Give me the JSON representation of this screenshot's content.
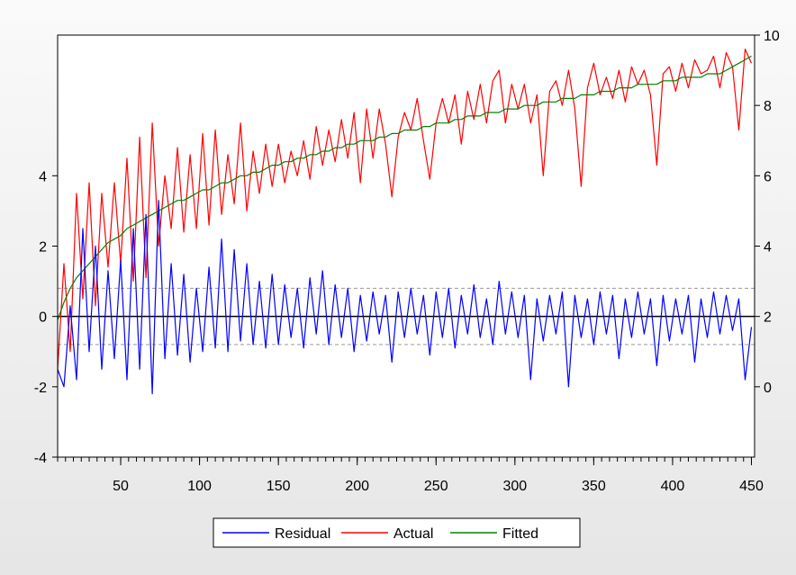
{
  "chart_data": {
    "type": "line",
    "title": "",
    "xlabel": "",
    "x_range": [
      10,
      452
    ],
    "x_ticks": [
      50,
      100,
      150,
      200,
      250,
      300,
      350,
      400,
      450
    ],
    "left_axis": {
      "range": [
        -4,
        8
      ],
      "ticks": [
        -4,
        -2,
        0,
        2,
        4
      ]
    },
    "right_axis": {
      "range": [
        -2,
        10
      ],
      "ticks": [
        0,
        2,
        4,
        6,
        8,
        10
      ]
    },
    "residual_std_band": [
      -0.8,
      0.8
    ],
    "legend_placement": "bottom-center",
    "series": [
      {
        "name": "Residual",
        "axis": "left",
        "color": "#0000ff",
        "x": [
          10,
          14,
          18,
          22,
          26,
          30,
          34,
          38,
          42,
          46,
          50,
          54,
          58,
          62,
          66,
          70,
          74,
          78,
          82,
          86,
          90,
          94,
          98,
          102,
          106,
          110,
          114,
          118,
          122,
          126,
          130,
          134,
          138,
          142,
          146,
          150,
          154,
          158,
          162,
          166,
          170,
          174,
          178,
          182,
          186,
          190,
          194,
          198,
          202,
          206,
          210,
          214,
          218,
          222,
          226,
          230,
          234,
          238,
          242,
          246,
          250,
          254,
          258,
          262,
          266,
          270,
          274,
          278,
          282,
          286,
          290,
          294,
          298,
          302,
          306,
          310,
          314,
          318,
          322,
          326,
          330,
          334,
          338,
          342,
          346,
          350,
          354,
          358,
          362,
          366,
          370,
          374,
          378,
          382,
          386,
          390,
          394,
          398,
          402,
          406,
          410,
          414,
          418,
          422,
          426,
          430,
          434,
          438,
          442,
          446,
          450
        ],
        "y": [
          -1.5,
          -2.0,
          0.3,
          -1.8,
          2.5,
          -1.0,
          2.0,
          -1.5,
          1.3,
          -1.2,
          1.6,
          -1.8,
          2.5,
          -1.5,
          2.9,
          -2.2,
          3.3,
          -1.2,
          1.5,
          -1.1,
          1.2,
          -1.3,
          0.8,
          -1.0,
          1.4,
          -0.9,
          2.2,
          -1.0,
          1.9,
          -0.7,
          1.5,
          -0.8,
          1.0,
          -0.9,
          1.2,
          -0.8,
          0.9,
          -0.6,
          0.8,
          -0.9,
          1.1,
          -0.5,
          1.3,
          -0.8,
          0.9,
          -0.6,
          0.8,
          -1.0,
          0.6,
          -0.7,
          0.7,
          -0.5,
          0.6,
          -1.3,
          0.7,
          -0.6,
          0.8,
          -0.5,
          0.6,
          -1.1,
          0.7,
          -0.6,
          0.8,
          -0.9,
          0.6,
          -0.5,
          0.9,
          -0.6,
          0.5,
          -0.8,
          1.0,
          -0.5,
          0.7,
          -0.6,
          0.6,
          -1.8,
          0.5,
          -0.7,
          0.6,
          -0.5,
          0.7,
          -2.0,
          0.6,
          -0.6,
          0.5,
          -0.8,
          0.7,
          -0.5,
          0.6,
          -1.2,
          0.5,
          -0.6,
          0.7,
          -0.5,
          0.5,
          -1.4,
          0.6,
          -0.7,
          0.5,
          -0.5,
          0.6,
          -1.3,
          0.5,
          -0.6,
          0.7,
          -0.5,
          0.6,
          -0.4,
          0.5,
          -1.8,
          -0.3
        ]
      },
      {
        "name": "Actual",
        "axis": "right",
        "color": "#ff0000",
        "x": [
          10,
          14,
          18,
          22,
          26,
          30,
          34,
          38,
          42,
          46,
          50,
          54,
          58,
          62,
          66,
          70,
          74,
          78,
          82,
          86,
          90,
          94,
          98,
          102,
          106,
          110,
          114,
          118,
          122,
          126,
          130,
          134,
          138,
          142,
          146,
          150,
          154,
          158,
          162,
          166,
          170,
          174,
          178,
          182,
          186,
          190,
          194,
          198,
          202,
          206,
          210,
          214,
          218,
          222,
          226,
          230,
          234,
          238,
          242,
          246,
          250,
          254,
          258,
          262,
          266,
          270,
          274,
          278,
          282,
          286,
          290,
          294,
          298,
          302,
          306,
          310,
          314,
          318,
          322,
          326,
          330,
          334,
          338,
          342,
          346,
          350,
          354,
          358,
          362,
          366,
          370,
          374,
          378,
          382,
          386,
          390,
          394,
          398,
          402,
          406,
          410,
          414,
          418,
          422,
          426,
          430,
          434,
          438,
          442,
          446,
          450
        ],
        "y": [
          0.5,
          3.5,
          1.0,
          5.5,
          2.5,
          5.8,
          2.3,
          5.5,
          3.4,
          5.8,
          3.5,
          6.5,
          3.0,
          7.1,
          3.1,
          7.5,
          4.0,
          6.0,
          4.5,
          6.8,
          4.4,
          6.6,
          4.5,
          7.2,
          4.6,
          7.3,
          4.9,
          6.6,
          5.2,
          7.5,
          5.0,
          6.7,
          5.5,
          6.9,
          5.7,
          6.9,
          5.8,
          6.7,
          6.0,
          7.0,
          5.9,
          7.4,
          6.3,
          7.3,
          6.4,
          7.6,
          6.5,
          7.8,
          5.8,
          7.9,
          6.5,
          7.9,
          6.9,
          5.4,
          7.1,
          7.8,
          7.3,
          8.2,
          7.0,
          5.9,
          7.5,
          8.2,
          7.5,
          8.3,
          6.9,
          8.4,
          7.6,
          8.6,
          7.5,
          8.7,
          9.0,
          7.5,
          8.6,
          7.9,
          8.6,
          7.5,
          8.3,
          6.0,
          8.4,
          8.7,
          8.0,
          9.0,
          7.9,
          5.7,
          8.5,
          9.2,
          8.3,
          8.8,
          8.2,
          9.0,
          8.1,
          9.1,
          8.6,
          9.0,
          8.3,
          6.3,
          8.9,
          9.1,
          8.4,
          9.2,
          8.5,
          9.3,
          8.9,
          9.0,
          9.4,
          8.5,
          9.5,
          9.1,
          7.3,
          9.6,
          9.2
        ]
      },
      {
        "name": "Fitted",
        "axis": "right",
        "color": "#008000",
        "x": [
          10,
          14,
          18,
          22,
          26,
          30,
          34,
          38,
          42,
          46,
          50,
          54,
          58,
          62,
          66,
          70,
          74,
          78,
          82,
          86,
          90,
          94,
          98,
          102,
          106,
          110,
          114,
          118,
          122,
          126,
          130,
          134,
          138,
          142,
          146,
          150,
          154,
          158,
          162,
          166,
          170,
          174,
          178,
          182,
          186,
          190,
          194,
          198,
          202,
          206,
          210,
          214,
          218,
          222,
          226,
          230,
          234,
          238,
          242,
          246,
          250,
          254,
          258,
          262,
          266,
          270,
          274,
          278,
          282,
          286,
          290,
          294,
          298,
          302,
          306,
          310,
          314,
          318,
          322,
          326,
          330,
          334,
          338,
          342,
          346,
          350,
          354,
          358,
          362,
          366,
          370,
          374,
          378,
          382,
          386,
          390,
          394,
          398,
          402,
          406,
          410,
          414,
          418,
          422,
          426,
          430,
          434,
          438,
          442,
          446,
          450
        ],
        "y": [
          1.9,
          2.4,
          2.8,
          3.1,
          3.3,
          3.5,
          3.7,
          3.9,
          4.1,
          4.2,
          4.3,
          4.5,
          4.6,
          4.7,
          4.8,
          4.9,
          5.0,
          5.1,
          5.2,
          5.3,
          5.3,
          5.4,
          5.5,
          5.6,
          5.6,
          5.7,
          5.8,
          5.8,
          5.9,
          6.0,
          6.0,
          6.1,
          6.1,
          6.2,
          6.3,
          6.3,
          6.4,
          6.4,
          6.5,
          6.5,
          6.6,
          6.6,
          6.7,
          6.7,
          6.8,
          6.8,
          6.9,
          6.9,
          7.0,
          7.0,
          7.0,
          7.1,
          7.1,
          7.2,
          7.2,
          7.3,
          7.3,
          7.3,
          7.4,
          7.4,
          7.5,
          7.5,
          7.5,
          7.6,
          7.6,
          7.7,
          7.7,
          7.7,
          7.8,
          7.8,
          7.8,
          7.9,
          7.9,
          7.9,
          8.0,
          8.0,
          8.0,
          8.1,
          8.1,
          8.1,
          8.2,
          8.2,
          8.2,
          8.3,
          8.3,
          8.3,
          8.4,
          8.4,
          8.4,
          8.5,
          8.5,
          8.5,
          8.6,
          8.6,
          8.6,
          8.6,
          8.7,
          8.7,
          8.7,
          8.8,
          8.8,
          8.8,
          8.8,
          8.9,
          8.9,
          8.9,
          9.0,
          9.1,
          9.2,
          9.3,
          9.4
        ]
      }
    ]
  }
}
